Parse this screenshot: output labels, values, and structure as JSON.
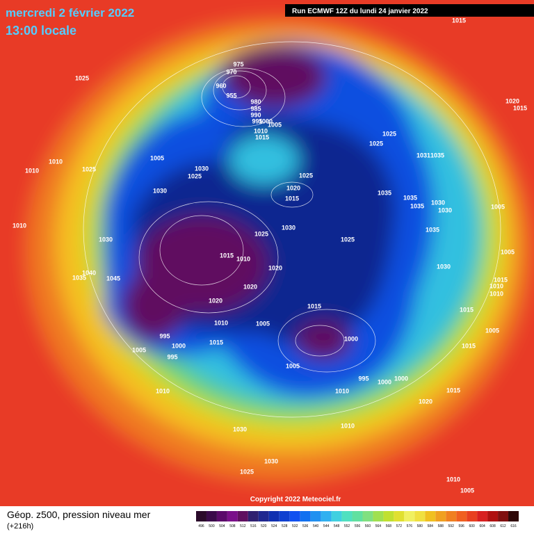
{
  "header": {
    "date": "mercredi 2 février 2022",
    "time": "13:00 locale",
    "run": "Run ECMWF 12Z du lundi 24 janvier 2022"
  },
  "copyright": "Copyright 2022 Meteociel.fr",
  "legend": {
    "title": "Géop. z500, pression niveau mer",
    "subtitle": "(+216h)",
    "scale": [
      "496",
      "500",
      "504",
      "508",
      "512",
      "516",
      "520",
      "524",
      "528",
      "532",
      "536",
      "540",
      "544",
      "548",
      "552",
      "556",
      "560",
      "564",
      "568",
      "572",
      "576",
      "580",
      "584",
      "588",
      "592",
      "596",
      "600",
      "604",
      "608",
      "612",
      "616"
    ]
  },
  "isobar_labels": [
    "1015",
    "1025",
    "975",
    "970",
    "960",
    "955",
    "980",
    "985",
    "990",
    "995",
    "1000",
    "1005",
    "1010",
    "1015",
    "1020",
    "1015",
    "1025",
    "1025",
    "1005",
    "1010",
    "1025",
    "1010",
    "1030",
    "1025",
    "1030",
    "1025",
    "1020",
    "1015",
    "1035",
    "1035",
    "1035",
    "1030",
    "1030",
    "1031",
    "1035",
    "1005",
    "1030",
    "1025",
    "1025",
    "1035",
    "1010",
    "1030",
    "1015",
    "1010",
    "1005",
    "1020",
    "1030",
    "1040",
    "1035",
    "1045",
    "1020",
    "1015",
    "1010",
    "1010",
    "1020",
    "1015",
    "1015",
    "1010",
    "1005",
    "1005",
    "995",
    "1000",
    "1000",
    "1015",
    "1005",
    "995",
    "1015",
    "1005",
    "995",
    "1000",
    "1000",
    "1010",
    "1015",
    "1010",
    "1020",
    "1010",
    "1030",
    "1030",
    "1025",
    "1010",
    "1005"
  ]
}
